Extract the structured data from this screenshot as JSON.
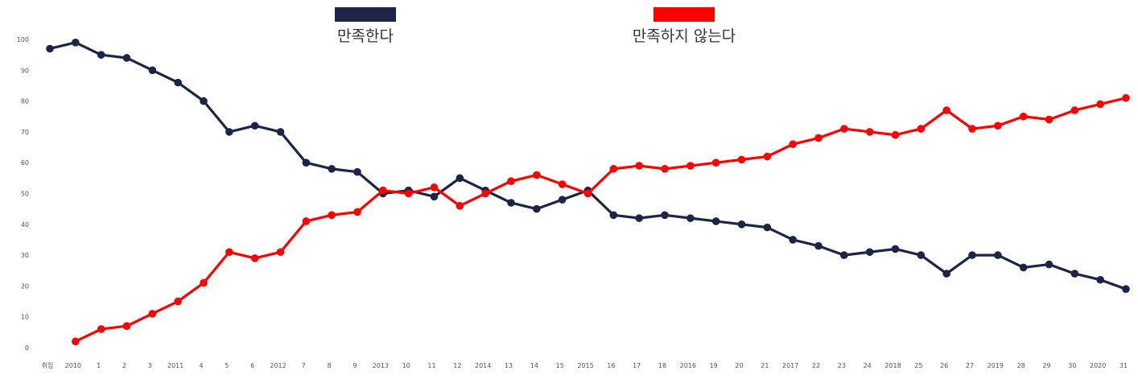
{
  "chart_data": {
    "type": "line",
    "categories": [
      "취임",
      "2010",
      "1",
      "2",
      "3",
      "2011",
      "4",
      "5",
      "6",
      "2012",
      "7",
      "8",
      "9",
      "2013",
      "10",
      "11",
      "12",
      "2014",
      "13",
      "14",
      "15",
      "2015",
      "16",
      "17",
      "18",
      "2016",
      "19",
      "20",
      "21",
      "2017",
      "22",
      "23",
      "24",
      "2018",
      "25",
      "26",
      "27",
      "2019",
      "28",
      "29",
      "30",
      "2020",
      "31"
    ],
    "series": [
      {
        "name": "만족한다",
        "color": "#1c2447",
        "values": [
          97,
          99,
          95,
          94,
          90,
          86,
          80,
          70,
          72,
          70,
          60,
          58,
          57,
          50,
          51,
          49,
          55,
          51,
          47,
          45,
          48,
          51,
          43,
          42,
          43,
          42,
          41,
          40,
          39,
          35,
          33,
          30,
          31,
          32,
          30,
          24,
          30,
          30,
          26,
          27,
          24,
          22,
          19
        ]
      },
      {
        "name": "만족하지 않는다",
        "color": "#ff0000",
        "values": [
          null,
          2,
          6,
          7,
          11,
          15,
          21,
          31,
          29,
          31,
          41,
          43,
          44,
          51,
          50,
          52,
          46,
          50,
          54,
          56,
          53,
          50,
          58,
          59,
          58,
          59,
          60,
          61,
          62,
          66,
          68,
          71,
          70,
          69,
          71,
          77,
          71,
          72,
          75,
          74,
          77,
          79,
          81
        ]
      }
    ],
    "yticks": [
      0,
      10,
      20,
      30,
      40,
      50,
      60,
      70,
      80,
      90,
      100
    ],
    "ylim": [
      0,
      100
    ],
    "title": "",
    "xlabel": "",
    "ylabel": "",
    "legend_position": "top",
    "grid": false
  }
}
